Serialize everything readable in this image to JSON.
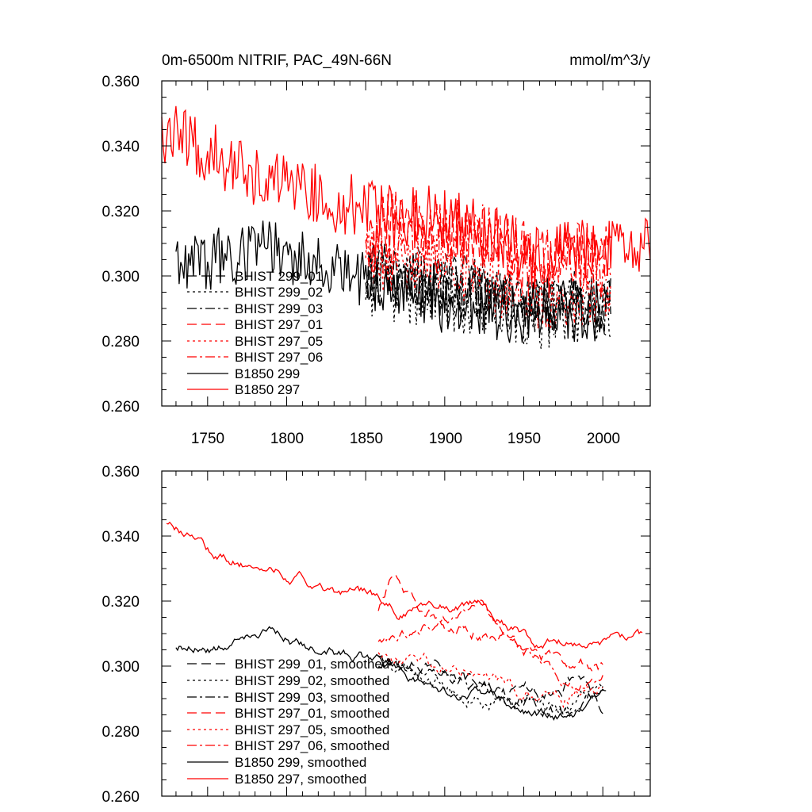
{
  "chart_data": [
    {
      "type": "line",
      "title": "0m-6500m NITRIF, PAC_49N-66N",
      "units": "mmol/m^3/y",
      "xlim": [
        1721,
        2030
      ],
      "ylim": [
        0.26,
        0.36
      ],
      "xticks": [
        1750,
        1800,
        1850,
        1900,
        1950,
        2000
      ],
      "xtick_labels": [
        "1750",
        "1800",
        "1850",
        "1900",
        "1950",
        "2000"
      ],
      "yticks": [
        0.26,
        0.28,
        0.3,
        0.32,
        0.34,
        0.36
      ],
      "ytick_labels": [
        "0.260",
        "0.280",
        "0.300",
        "0.320",
        "0.340",
        "0.360"
      ],
      "grid": false,
      "legend_position": "lower-left",
      "series": [
        {
          "name": "BHIST 299_01",
          "color": "#000000",
          "dash": "dashed",
          "start": 1850,
          "end": 2005,
          "base": [
            [
              1850,
              0.302
            ],
            [
              1880,
              0.3
            ],
            [
              1920,
              0.297
            ],
            [
              1960,
              0.292
            ],
            [
              2005,
              0.293
            ]
          ],
          "amp": 0.009,
          "seed": 11
        },
        {
          "name": "BHIST 299_02",
          "color": "#000000",
          "dash": "dotted",
          "start": 1850,
          "end": 2005,
          "base": [
            [
              1850,
              0.298
            ],
            [
              1880,
              0.295
            ],
            [
              1920,
              0.292
            ],
            [
              1960,
              0.288
            ],
            [
              2005,
              0.29
            ]
          ],
          "amp": 0.011,
          "seed": 12
        },
        {
          "name": "BHIST 299_03",
          "color": "#000000",
          "dash": "dashdot",
          "start": 1850,
          "end": 2005,
          "base": [
            [
              1850,
              0.301
            ],
            [
              1880,
              0.298
            ],
            [
              1920,
              0.294
            ],
            [
              1960,
              0.29
            ],
            [
              2005,
              0.292
            ]
          ],
          "amp": 0.009,
          "seed": 13
        },
        {
          "name": "BHIST 297_01",
          "color": "#ff0000",
          "dash": "dashed",
          "start": 1850,
          "end": 2005,
          "base": [
            [
              1850,
              0.312
            ],
            [
              1870,
              0.318
            ],
            [
              1900,
              0.313
            ],
            [
              1930,
              0.31
            ],
            [
              1960,
              0.306
            ],
            [
              2005,
              0.307
            ]
          ],
          "amp": 0.01,
          "seed": 14
        },
        {
          "name": "BHIST 297_05",
          "color": "#ff0000",
          "dash": "dotted",
          "start": 1850,
          "end": 2005,
          "base": [
            [
              1850,
              0.306
            ],
            [
              1880,
              0.304
            ],
            [
              1920,
              0.3
            ],
            [
              1960,
              0.294
            ],
            [
              2005,
              0.296
            ]
          ],
          "amp": 0.011,
          "seed": 15
        },
        {
          "name": "BHIST 297_06",
          "color": "#ff0000",
          "dash": "dashdot",
          "start": 1850,
          "end": 2005,
          "base": [
            [
              1850,
              0.31
            ],
            [
              1880,
              0.308
            ],
            [
              1920,
              0.316
            ],
            [
              1950,
              0.304
            ],
            [
              2005,
              0.302
            ]
          ],
          "amp": 0.011,
          "seed": 16
        },
        {
          "name": "B1850 299",
          "color": "#000000",
          "dash": "solid",
          "start": 1730,
          "end": 2002,
          "base": [
            [
              1730,
              0.305
            ],
            [
              1760,
              0.306
            ],
            [
              1790,
              0.309
            ],
            [
              1820,
              0.304
            ],
            [
              1850,
              0.3
            ],
            [
              1880,
              0.293
            ],
            [
              1920,
              0.291
            ],
            [
              1960,
              0.288
            ],
            [
              2002,
              0.29
            ]
          ],
          "amp": 0.01,
          "seed": 17
        },
        {
          "name": "B1850 297",
          "color": "#ff0000",
          "dash": "solid",
          "start": 1721,
          "end": 2030,
          "base": [
            [
              1721,
              0.345
            ],
            [
              1750,
              0.338
            ],
            [
              1780,
              0.331
            ],
            [
              1810,
              0.326
            ],
            [
              1840,
              0.322
            ],
            [
              1870,
              0.318
            ],
            [
              1900,
              0.318
            ],
            [
              1930,
              0.312
            ],
            [
              1960,
              0.305
            ],
            [
              1990,
              0.308
            ],
            [
              2030,
              0.308
            ]
          ],
          "amp": 0.01,
          "seed": 18
        }
      ]
    },
    {
      "type": "line",
      "title": "",
      "xlim": [
        1721,
        2030
      ],
      "ylim": [
        0.26,
        0.36
      ],
      "xticks": [
        1750,
        1800,
        1850,
        1900,
        1950,
        2000
      ],
      "yticks": [
        0.26,
        0.28,
        0.3,
        0.32,
        0.34,
        0.36
      ],
      "ytick_labels": [
        "0.260",
        "0.280",
        "0.300",
        "0.320",
        "0.340",
        "0.360"
      ],
      "grid": false,
      "legend_position": "lower-left",
      "series": [
        {
          "name": "BHIST 299_01, smoothed",
          "color": "#000000",
          "dash": "dashed",
          "start": 1858,
          "end": 2000,
          "base": [
            [
              1858,
              0.302
            ],
            [
              1880,
              0.3
            ],
            [
              1900,
              0.297
            ],
            [
              1925,
              0.294
            ],
            [
              1950,
              0.291
            ],
            [
              1970,
              0.294
            ],
            [
              1985,
              0.296
            ],
            [
              2000,
              0.288
            ]
          ],
          "amp": 0.004,
          "seed": 21
        },
        {
          "name": "BHIST 299_02, smoothed",
          "color": "#000000",
          "dash": "dotted",
          "start": 1858,
          "end": 2000,
          "base": [
            [
              1858,
              0.298
            ],
            [
              1880,
              0.296
            ],
            [
              1900,
              0.293
            ],
            [
              1925,
              0.29
            ],
            [
              1950,
              0.288
            ],
            [
              1975,
              0.287
            ],
            [
              2000,
              0.291
            ]
          ],
          "amp": 0.004,
          "seed": 22
        },
        {
          "name": "BHIST 299_03, smoothed",
          "color": "#000000",
          "dash": "dashdot",
          "start": 1858,
          "end": 2000,
          "base": [
            [
              1858,
              0.301
            ],
            [
              1880,
              0.299
            ],
            [
              1900,
              0.296
            ],
            [
              1925,
              0.292
            ],
            [
              1950,
              0.29
            ],
            [
              1975,
              0.285
            ],
            [
              2000,
              0.293
            ]
          ],
          "amp": 0.004,
          "seed": 23
        },
        {
          "name": "BHIST 297_01, smoothed",
          "color": "#ff0000",
          "dash": "dashed",
          "start": 1858,
          "end": 2000,
          "base": [
            [
              1858,
              0.318
            ],
            [
              1868,
              0.327
            ],
            [
              1880,
              0.318
            ],
            [
              1900,
              0.312
            ],
            [
              1925,
              0.31
            ],
            [
              1945,
              0.307
            ],
            [
              1960,
              0.303
            ],
            [
              1980,
              0.301
            ],
            [
              2000,
              0.298
            ]
          ],
          "amp": 0.004,
          "seed": 24
        },
        {
          "name": "BHIST 297_05, smoothed",
          "color": "#ff0000",
          "dash": "dotted",
          "start": 1858,
          "end": 2000,
          "base": [
            [
              1858,
              0.305
            ],
            [
              1880,
              0.302
            ],
            [
              1900,
              0.3
            ],
            [
              1925,
              0.298
            ],
            [
              1950,
              0.292
            ],
            [
              1975,
              0.29
            ],
            [
              2000,
              0.296
            ]
          ],
          "amp": 0.004,
          "seed": 25
        },
        {
          "name": "BHIST 297_06, smoothed",
          "color": "#ff0000",
          "dash": "dashdot",
          "start": 1858,
          "end": 2000,
          "base": [
            [
              1858,
              0.308
            ],
            [
              1880,
              0.311
            ],
            [
              1900,
              0.314
            ],
            [
              1922,
              0.321
            ],
            [
              1935,
              0.31
            ],
            [
              1950,
              0.305
            ],
            [
              1970,
              0.299
            ],
            [
              1985,
              0.293
            ],
            [
              2000,
              0.297
            ]
          ],
          "amp": 0.003,
          "seed": 26
        },
        {
          "name": "B1850 299, smoothed",
          "color": "#000000",
          "dash": "solid",
          "start": 1730,
          "end": 2002,
          "base": [
            [
              1730,
              0.306
            ],
            [
              1760,
              0.306
            ],
            [
              1785,
              0.311
            ],
            [
              1810,
              0.306
            ],
            [
              1840,
              0.303
            ],
            [
              1860,
              0.301
            ],
            [
              1880,
              0.296
            ],
            [
              1900,
              0.293
            ],
            [
              1930,
              0.291
            ],
            [
              1960,
              0.285
            ],
            [
              1980,
              0.284
            ],
            [
              2002,
              0.292
            ]
          ],
          "amp": 0.003,
          "seed": 27
        },
        {
          "name": "B1850 297, smoothed",
          "color": "#ff0000",
          "dash": "solid",
          "start": 1724,
          "end": 2025,
          "base": [
            [
              1724,
              0.344
            ],
            [
              1740,
              0.34
            ],
            [
              1760,
              0.333
            ],
            [
              1790,
              0.329
            ],
            [
              1810,
              0.328
            ],
            [
              1830,
              0.322
            ],
            [
              1850,
              0.322
            ],
            [
              1870,
              0.316
            ],
            [
              1900,
              0.318
            ],
            [
              1920,
              0.319
            ],
            [
              1940,
              0.312
            ],
            [
              1960,
              0.306
            ],
            [
              1975,
              0.307
            ],
            [
              1990,
              0.308
            ],
            [
              2025,
              0.309
            ]
          ],
          "amp": 0.003,
          "seed": 28
        }
      ]
    }
  ]
}
